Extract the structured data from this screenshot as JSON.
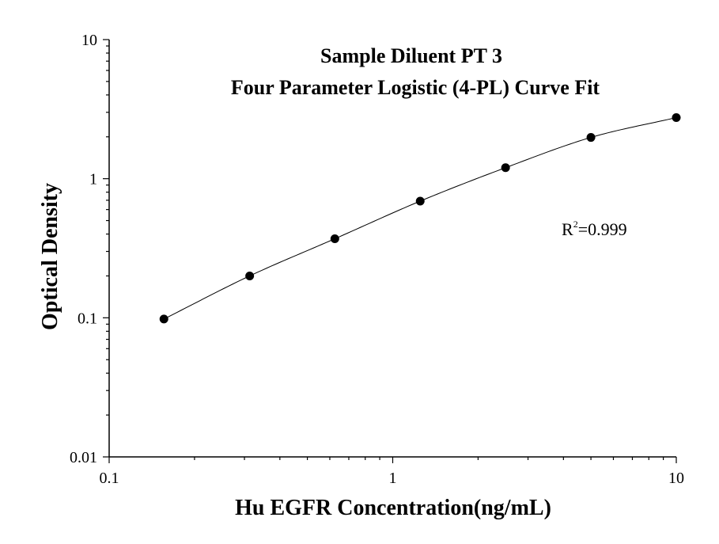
{
  "chart_data": {
    "type": "scatter",
    "title": "Sample Diluent PT 3",
    "subtitle": "Four Parameter Logistic (4-PL) Curve Fit",
    "xlabel": "Hu EGFR Concentration(ng/mL)",
    "ylabel": "Optical Density",
    "xscale": "log",
    "yscale": "log",
    "xlim": [
      0.1,
      10
    ],
    "ylim": [
      0.01,
      10
    ],
    "xticks": [
      "0.1",
      "1",
      "10"
    ],
    "yticks": [
      "0.01",
      "0.1",
      "1",
      "10"
    ],
    "grid": false,
    "series": [
      {
        "x": [
          0.156,
          0.313,
          0.625,
          1.25,
          2.5,
          5,
          10
        ],
        "y": [
          0.098,
          0.2,
          0.37,
          0.69,
          1.2,
          1.98,
          2.75
        ],
        "color": "#000000"
      }
    ],
    "curve": {
      "type": "4PL",
      "color": "#000000"
    },
    "annotation": {
      "base": "R",
      "sup": "2",
      "rest": "=0.999"
    }
  }
}
